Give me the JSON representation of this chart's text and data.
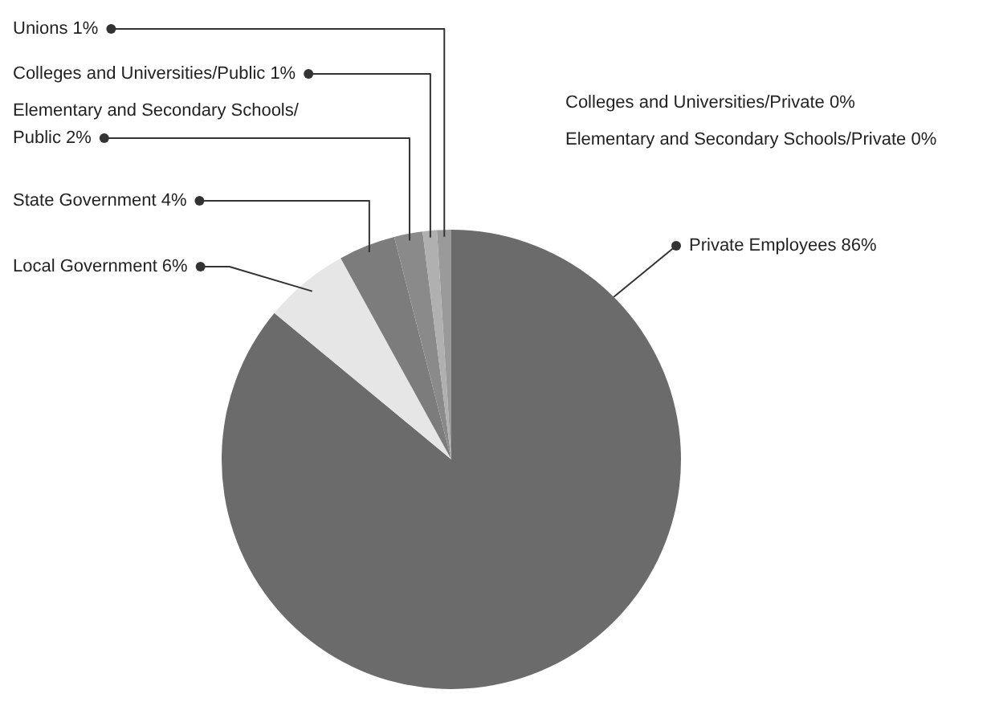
{
  "chart_data": {
    "type": "pie",
    "categories": [
      "Private Employees",
      "Local Government",
      "State Government",
      "Elementary and Secondary Schools/Public",
      "Colleges and Universities/Public",
      "Unions",
      "Colleges and Universities/Private",
      "Elementary and Secondary Schools/Private"
    ],
    "values": [
      86,
      6,
      4,
      2,
      1,
      1,
      0,
      0
    ],
    "value_labels": [
      "86%",
      "6%",
      "4%",
      "2%",
      "1%",
      "1%",
      "0%",
      "0%"
    ],
    "colors": [
      "#6b6b6b",
      "#e6e6e6",
      "#7c7c7c",
      "#8a8a8a",
      "#b0b0b0",
      "#9a9a9a",
      "#a0a0a0",
      "#a0a0a0"
    ],
    "legend": false
  }
}
